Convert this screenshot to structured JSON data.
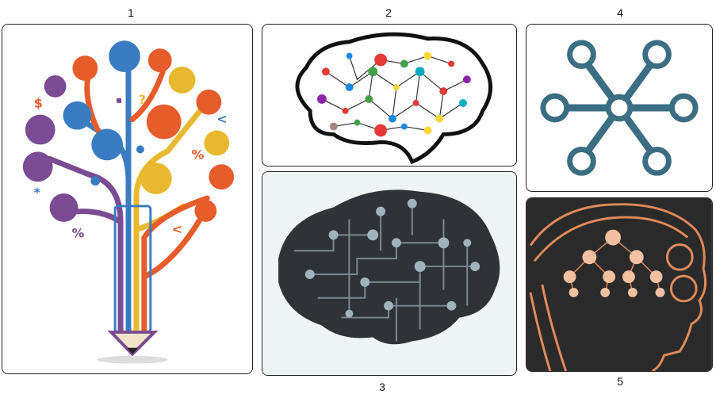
{
  "panels": [
    {
      "label": "1",
      "subject": "pencil-idea-tree"
    },
    {
      "label": "2",
      "subject": "brain-network"
    },
    {
      "label": "3",
      "subject": "circuit-brain"
    },
    {
      "label": "4",
      "subject": "hub-node-network"
    },
    {
      "label": "5",
      "subject": "head-neural-network"
    }
  ],
  "colors": {
    "purple": "#7b4b94",
    "blue": "#3a7cc1",
    "orange": "#e65c2b",
    "yellow": "#e8b92e",
    "red": "#d9402b",
    "teal": "#3b6e82",
    "copper": "#e08a5a",
    "dark": "#2a2a2a"
  }
}
